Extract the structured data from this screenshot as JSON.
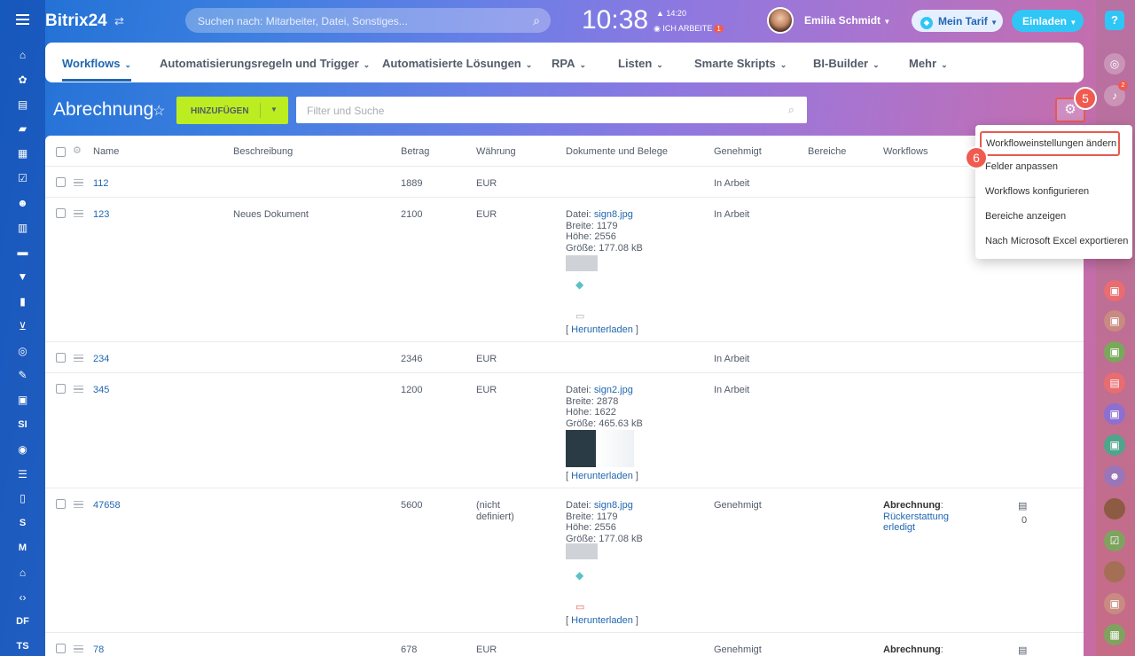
{
  "header": {
    "logo": "Bitrix24",
    "search_placeholder": "Suchen nach: Mitarbeiter, Datei, Sonstiges...",
    "clock": "10:38",
    "clock_small": "14:20",
    "work_status": "ICH ARBEITE",
    "work_badge": "1",
    "user_name": "Emilia Schmidt",
    "tarif": "Mein Tarif",
    "invite": "Einladen",
    "help": "?"
  },
  "left_nav": [
    "home-icon",
    "feed-icon",
    "tasks-icon",
    "chat-icon",
    "calendar-icon",
    "checklist-icon",
    "team-icon",
    "docs-icon",
    "drive-icon",
    "filter-icon",
    "reports-icon",
    "cart-icon",
    "target-icon",
    "edit-icon",
    "contact-icon",
    "SI",
    "robot-icon",
    "list-icon",
    "phone-icon",
    "S",
    "M",
    "bank-icon",
    "code-icon",
    "DF",
    "TS"
  ],
  "tabs": [
    {
      "label": "Workflows",
      "active": true
    },
    {
      "label": "Automatisierungsregeln und Trigger"
    },
    {
      "label": "Automatisierte Lösungen"
    },
    {
      "label": "RPA"
    },
    {
      "label": "Listen"
    },
    {
      "label": "Smarte Skripts"
    },
    {
      "label": "BI-Builder"
    },
    {
      "label": "Mehr"
    }
  ],
  "page": {
    "title": "Abrechnung",
    "add_button": "HINZUFÜGEN",
    "filter_placeholder": "Filter und Suche"
  },
  "steps": {
    "gear": "5",
    "menu": "6"
  },
  "notification_badge": "2",
  "columns": [
    "Name",
    "Beschreibung",
    "Betrag",
    "Währung",
    "Dokumente und Belege",
    "Genehmigt",
    "Bereiche",
    "Workflows"
  ],
  "rows": [
    {
      "name": "112",
      "desc": "",
      "amount": "1889",
      "currency": "EUR",
      "approved": "In Arbeit"
    },
    {
      "name": "123",
      "desc": "Neues Dokument",
      "amount": "2100",
      "currency": "EUR",
      "approved": "In Arbeit",
      "doc": {
        "label": "Datei:",
        "file": "sign8.jpg",
        "width": "Breite: 1179",
        "height": "Höhe: 2556",
        "size": "Größe: 177.08 kB",
        "download": "Herunterladen"
      }
    },
    {
      "name": "234",
      "desc": "",
      "amount": "2346",
      "currency": "EUR",
      "approved": "In Arbeit"
    },
    {
      "name": "345",
      "desc": "",
      "amount": "1200",
      "currency": "EUR",
      "approved": "In Arbeit",
      "doc": {
        "label": "Datei:",
        "file": "sign2.jpg",
        "width": "Breite: 2878",
        "height": "Höhe: 1622",
        "size": "Größe: 465.63 kB",
        "download": "Herunterladen"
      }
    },
    {
      "name": "47658",
      "desc": "",
      "amount": "5600",
      "currency_line1": "(nicht",
      "currency_line2": "definiert)",
      "approved": "Genehmigt",
      "doc": {
        "label": "Datei:",
        "file": "sign8.jpg",
        "width": "Breite: 1179",
        "height": "Höhe: 2556",
        "size": "Größe: 177.08 kB",
        "download": "Herunterladen"
      },
      "workflow": {
        "title": "Abrechnung",
        "sep": ":",
        "line1": "Rückerstattung",
        "line2": "erledigt"
      },
      "comments": "0"
    },
    {
      "name": "78",
      "desc": "",
      "amount": "678",
      "currency": "EUR",
      "approved": "Genehmigt",
      "workflow": {
        "title": "Abrechnung",
        "sep": ":"
      }
    }
  ],
  "menu": [
    "Workfloweinstellungen ändern",
    "Felder anpassen",
    "Workflows konfigurieren",
    "Bereiche anzeigen",
    "Nach Microsoft Excel exportieren"
  ]
}
